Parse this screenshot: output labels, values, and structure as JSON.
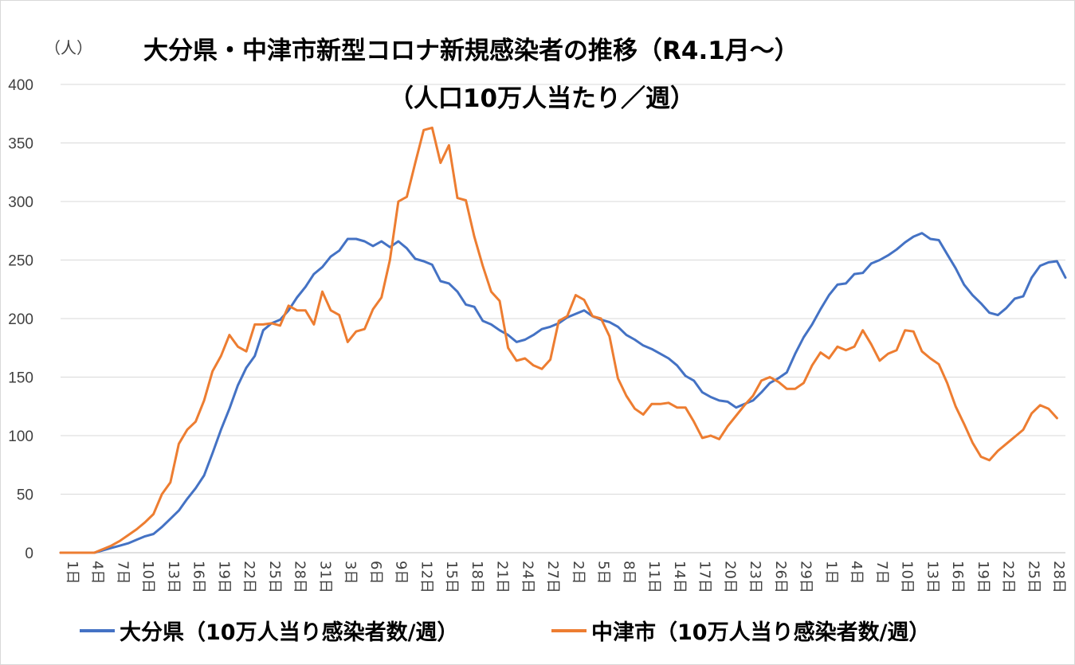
{
  "chart_data": {
    "type": "line",
    "title": "大分県・中津市新型コロナ新規感染者の推移（R4.1月～）",
    "subtitle": "（人口10万人当たり／週）",
    "ylabel": "（人）",
    "ylim": [
      0,
      400
    ],
    "yticks": [
      "0",
      "50",
      "100",
      "150",
      "200",
      "250",
      "300",
      "350",
      "400"
    ],
    "grid": true,
    "legend_position": "bottom",
    "x_tick_labels": [
      "1日",
      "4日",
      "7日",
      "10日",
      "13日",
      "16日",
      "19日",
      "22日",
      "25日",
      "28日",
      "31日",
      "3日",
      "6日",
      "9日",
      "12日",
      "15日",
      "18日",
      "21日",
      "24日",
      "27日",
      "2日",
      "5日",
      "8日",
      "11日",
      "14日",
      "17日",
      "20日",
      "23日",
      "26日",
      "29日",
      "1日",
      "4日",
      "7日",
      "10日",
      "13日",
      "16日",
      "19日",
      "22日",
      "25日",
      "28日"
    ],
    "series": [
      {
        "name": "大分県（10万人当り感染者数/週）",
        "color": "#4472c4",
        "values": [
          0,
          0,
          0,
          0,
          0,
          2,
          4,
          6,
          8,
          11,
          14,
          16,
          22,
          29,
          36,
          46,
          55,
          66,
          85,
          105,
          123,
          143,
          158,
          168,
          190,
          196,
          199,
          207,
          218,
          227,
          238,
          244,
          253,
          258,
          268,
          268,
          266,
          262,
          266,
          261,
          266,
          260,
          251,
          249,
          246,
          232,
          230,
          223,
          212,
          210,
          198,
          195,
          190,
          186,
          180,
          182,
          186,
          191,
          193,
          196,
          201,
          204,
          207,
          202,
          199,
          197,
          193,
          186,
          182,
          177,
          174,
          170,
          166,
          160,
          151,
          147,
          137,
          133,
          130,
          129,
          124,
          127,
          130,
          137,
          145,
          149,
          154,
          170,
          184,
          195,
          208,
          220,
          229,
          230,
          238,
          239,
          247,
          250,
          254,
          259,
          265,
          270,
          273,
          268,
          267,
          255,
          243,
          229,
          220,
          213,
          205,
          203,
          209,
          217,
          219,
          235,
          245,
          248,
          249,
          235
        ]
      },
      {
        "name": "中津市（10万人当り感染者数/週）",
        "color": "#ed7d31",
        "values": [
          0,
          0,
          0,
          0,
          0,
          3,
          6,
          10,
          15,
          20,
          26,
          33,
          50,
          60,
          93,
          105,
          112,
          130,
          155,
          168,
          186,
          176,
          172,
          195,
          195,
          196,
          194,
          211,
          207,
          207,
          195,
          223,
          207,
          203,
          180,
          189,
          191,
          208,
          218,
          250,
          300,
          304,
          333,
          361,
          363,
          333,
          348,
          303,
          301,
          270,
          245,
          223,
          215,
          175,
          164,
          166,
          160,
          157,
          165,
          198,
          202,
          220,
          216,
          202,
          200,
          185,
          149,
          134,
          123,
          118,
          127,
          127,
          128,
          124,
          124,
          112,
          98,
          100,
          97,
          108,
          117,
          126,
          134,
          147,
          150,
          146,
          140,
          140,
          145,
          160,
          171,
          166,
          176,
          173,
          176,
          190,
          178,
          164,
          170,
          173,
          190,
          189,
          172,
          166,
          161,
          145,
          125,
          110,
          94,
          82,
          79,
          87,
          93,
          99,
          105,
          119,
          126,
          123,
          115
        ]
      }
    ]
  }
}
